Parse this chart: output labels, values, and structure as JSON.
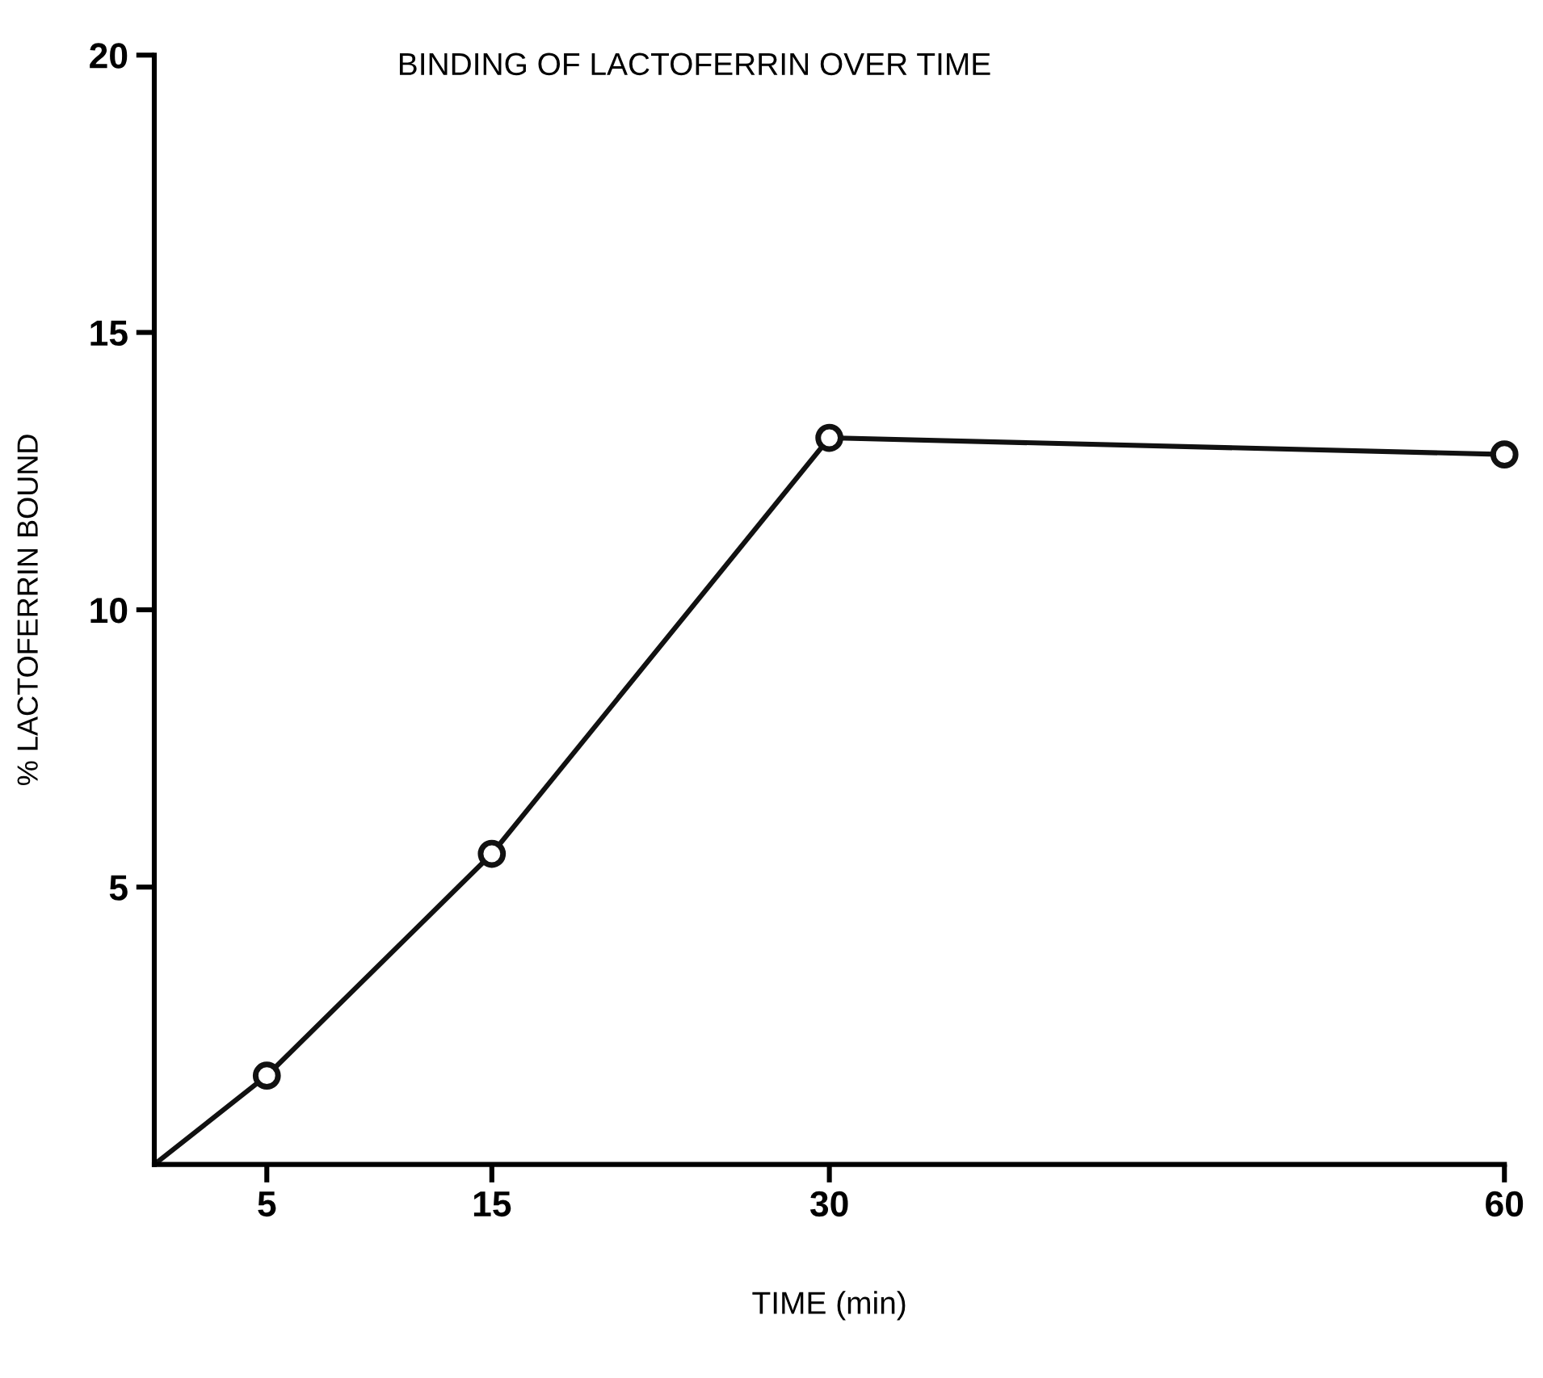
{
  "chart_data": {
    "type": "line",
    "title": "BINDING OF LACTOFERRIN OVER TIME",
    "xlabel": "TIME (min)",
    "ylabel": "% LACTOFERRIN BOUND",
    "series": [
      {
        "color": "#111111",
        "x": [
          0,
          5,
          15,
          30,
          60
        ],
        "values": [
          0,
          1.6,
          5.6,
          13.1,
          12.8
        ],
        "marker": "none"
      },
      {
        "type": "scatter",
        "color": "#111111",
        "x": [
          5,
          15,
          30,
          60
        ],
        "values": [
          1.6,
          5.6,
          13.1,
          12.8
        ],
        "marker": "circle"
      }
    ],
    "xlim": [
      0,
      60
    ],
    "ylim": [
      0,
      20
    ],
    "xticks": [
      5,
      15,
      30,
      60
    ],
    "yticks": [
      5,
      10,
      15,
      20
    ],
    "grid": false,
    "legend": false
  }
}
